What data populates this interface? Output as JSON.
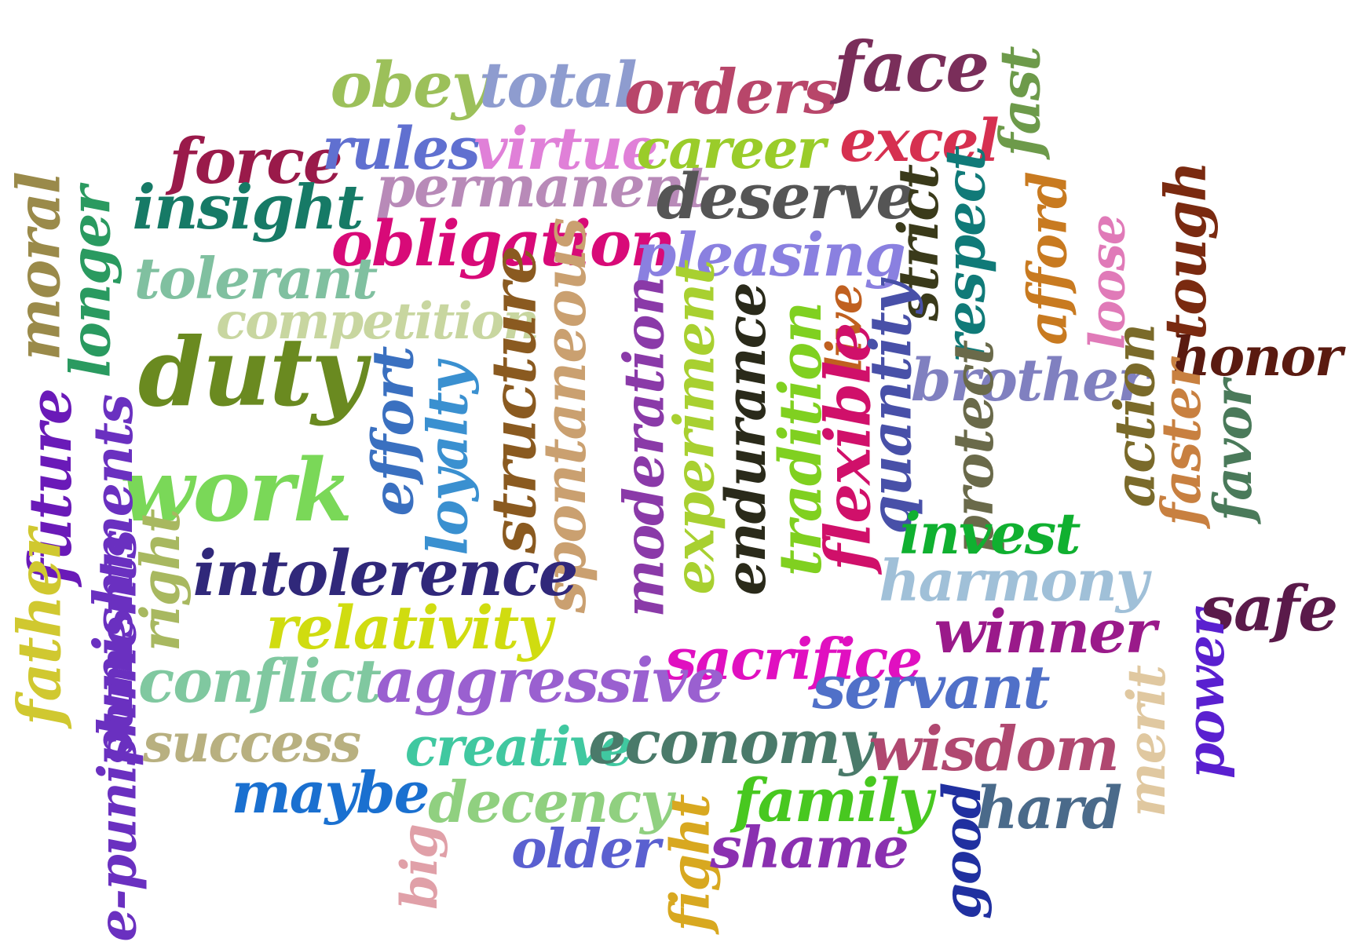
{
  "word_cloud": {
    "words": [
      {
        "text": "obey",
        "color": "#9cc05a"
      },
      {
        "text": "total",
        "color": "#8e9ccf"
      },
      {
        "text": "orders",
        "color": "#b8466a"
      },
      {
        "text": "face",
        "color": "#7a2e5a"
      },
      {
        "text": "fast",
        "color": "#6d9a4a"
      },
      {
        "text": "force",
        "color": "#9a1a4a"
      },
      {
        "text": "rules",
        "color": "#6070d0"
      },
      {
        "text": "virtue",
        "color": "#e080d8"
      },
      {
        "text": "career",
        "color": "#9acc2a"
      },
      {
        "text": "excel",
        "color": "#d63050"
      },
      {
        "text": "moral",
        "color": "#9a8a4a"
      },
      {
        "text": "longer",
        "color": "#2a9a60"
      },
      {
        "text": "insight",
        "color": "#167a66"
      },
      {
        "text": "permanent",
        "color": "#b88ab8"
      },
      {
        "text": "deserve",
        "color": "#555555"
      },
      {
        "text": "strict",
        "color": "#3a3a1a"
      },
      {
        "text": "respect",
        "color": "#107a78"
      },
      {
        "text": "afford",
        "color": "#c87a20"
      },
      {
        "text": "loose",
        "color": "#e07ab8"
      },
      {
        "text": "tough",
        "color": "#7a2a10"
      },
      {
        "text": "obligation",
        "color": "#d80a78"
      },
      {
        "text": "pleasing",
        "color": "#8a80e0"
      },
      {
        "text": "tolerant",
        "color": "#80c0a0"
      },
      {
        "text": "competition",
        "color": "#c8d6a0"
      },
      {
        "text": "structure",
        "color": "#8a5a20"
      },
      {
        "text": "spontaneous",
        "color": "#caa070"
      },
      {
        "text": "moderation",
        "color": "#8a3aa8"
      },
      {
        "text": "experiment",
        "color": "#a8d030"
      },
      {
        "text": "endurance",
        "color": "#2a2a1a"
      },
      {
        "text": "tradition",
        "color": "#80d020"
      },
      {
        "text": "live",
        "color": "#c06020"
      },
      {
        "text": "flexible",
        "color": "#d0106a"
      },
      {
        "text": "quantity",
        "color": "#4850a8"
      },
      {
        "text": "brother",
        "color": "#8080c0"
      },
      {
        "text": "honor",
        "color": "#5a1a10"
      },
      {
        "text": "duty",
        "color": "#6a8a20"
      },
      {
        "text": "effort",
        "color": "#3a70c0"
      },
      {
        "text": "loyalty",
        "color": "#3a90d0"
      },
      {
        "text": "protect",
        "color": "#6a6a4a"
      },
      {
        "text": "action",
        "color": "#7a6a2a"
      },
      {
        "text": "faster",
        "color": "#c88040"
      },
      {
        "text": "favor",
        "color": "#4a7a5a"
      },
      {
        "text": "future",
        "color": "#6a1ab8"
      },
      {
        "text": "work",
        "color": "#7ad858"
      },
      {
        "text": "punishments",
        "color": "#6a30c0"
      },
      {
        "text": "intolerence",
        "color": "#30287a"
      },
      {
        "text": "invest",
        "color": "#10b030"
      },
      {
        "text": "harmony",
        "color": "#a0c0d8"
      },
      {
        "text": "safe",
        "color": "#5a1a4a"
      },
      {
        "text": "father",
        "color": "#d0c830"
      },
      {
        "text": "right",
        "color": "#a8b860"
      },
      {
        "text": "relativity",
        "color": "#d0dc10"
      },
      {
        "text": "sacrifice",
        "color": "#e010c0"
      },
      {
        "text": "winner",
        "color": "#9a1a8a"
      },
      {
        "text": "conflict",
        "color": "#80c8a0"
      },
      {
        "text": "aggressive",
        "color": "#9a60d0"
      },
      {
        "text": "servant",
        "color": "#5070c8"
      },
      {
        "text": "merit",
        "color": "#e0c8a0"
      },
      {
        "text": "power",
        "color": "#5a20d0"
      },
      {
        "text": "success",
        "color": "#b8b080"
      },
      {
        "text": "creative",
        "color": "#40c8a0"
      },
      {
        "text": "economy",
        "color": "#4a7a6a"
      },
      {
        "text": "wisdom",
        "color": "#b04870"
      },
      {
        "text": "maybe",
        "color": "#1a70d0"
      },
      {
        "text": "decency",
        "color": "#90d080"
      },
      {
        "text": "fight",
        "color": "#d8a820"
      },
      {
        "text": "family",
        "color": "#48c820"
      },
      {
        "text": "good",
        "color": "#2030a0"
      },
      {
        "text": "hard",
        "color": "#4a6a8a"
      },
      {
        "text": "big",
        "color": "#e0a0a8"
      },
      {
        "text": "older",
        "color": "#5a60d0"
      },
      {
        "text": "shame",
        "color": "#8a30b0"
      },
      {
        "text": "e-punishments",
        "color": "#6a30c0"
      }
    ]
  }
}
